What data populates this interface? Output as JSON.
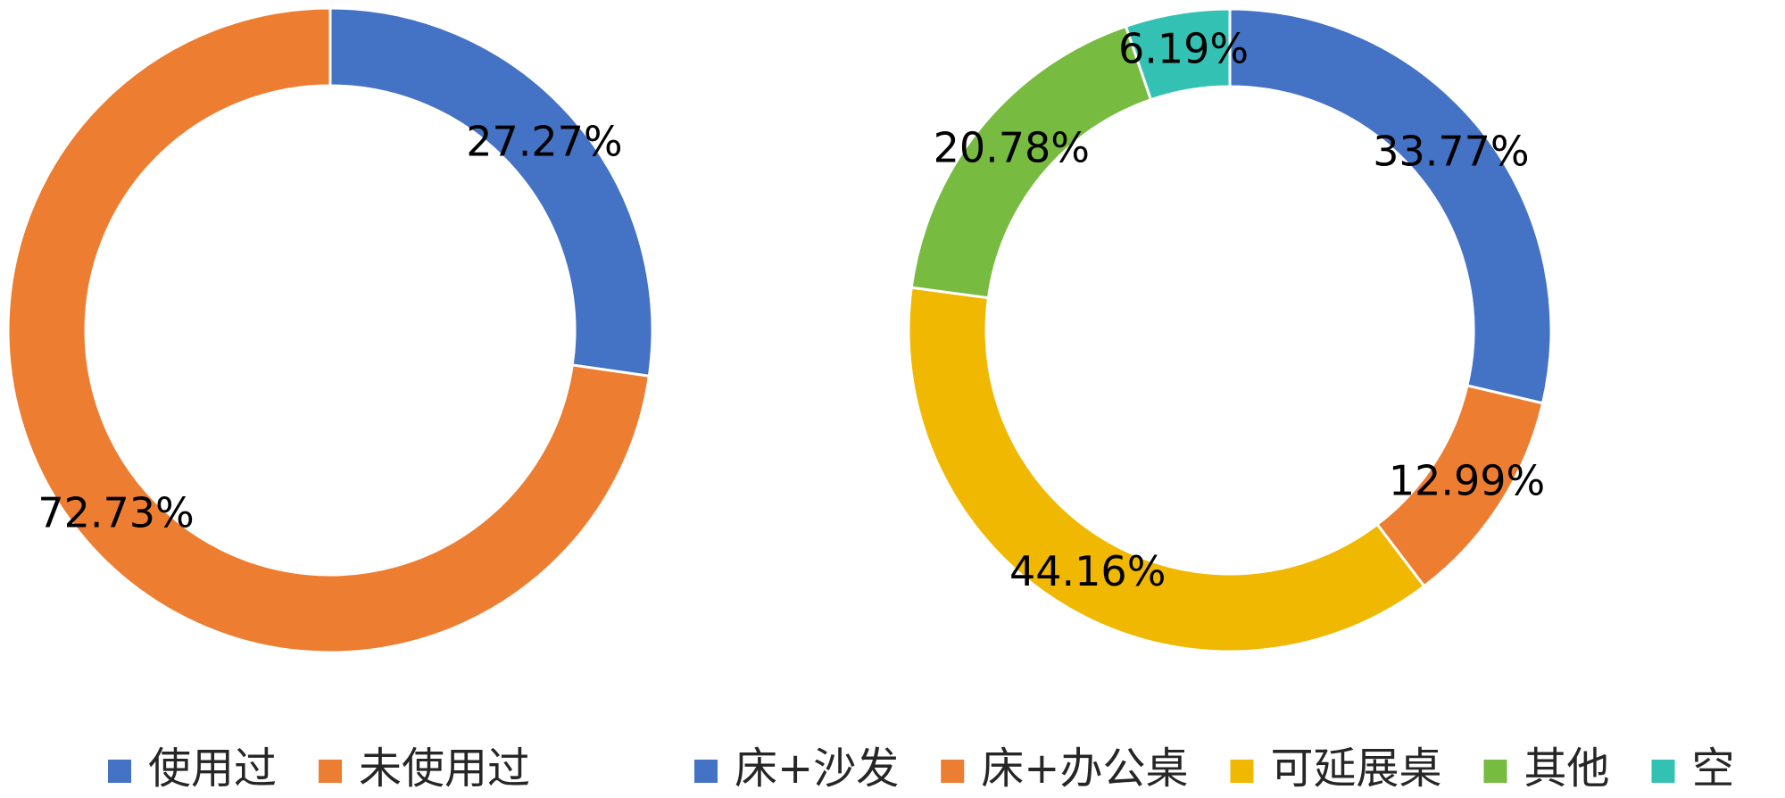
{
  "chart_data": [
    {
      "type": "pie",
      "categories": [
        "使用过",
        "未使用过"
      ],
      "values": [
        27.27,
        72.73
      ],
      "value_labels": [
        "27.27%",
        "72.73%"
      ],
      "colors": [
        "#4472C4",
        "#ED7D31"
      ],
      "legend": "bottom"
    },
    {
      "type": "pie",
      "categories": [
        "床+沙发",
        "床+办公桌",
        "可延展桌",
        "其他",
        "空"
      ],
      "values": [
        33.77,
        12.99,
        44.16,
        20.78,
        6.19
      ],
      "value_labels": [
        "33.77%",
        "12.99%",
        "44.16%",
        "20.78%",
        "6.19%"
      ],
      "colors": [
        "#4472C4",
        "#ED7D31",
        "#F0B800",
        "#77BB41",
        "#33C1B4"
      ],
      "legend": "bottom"
    }
  ]
}
